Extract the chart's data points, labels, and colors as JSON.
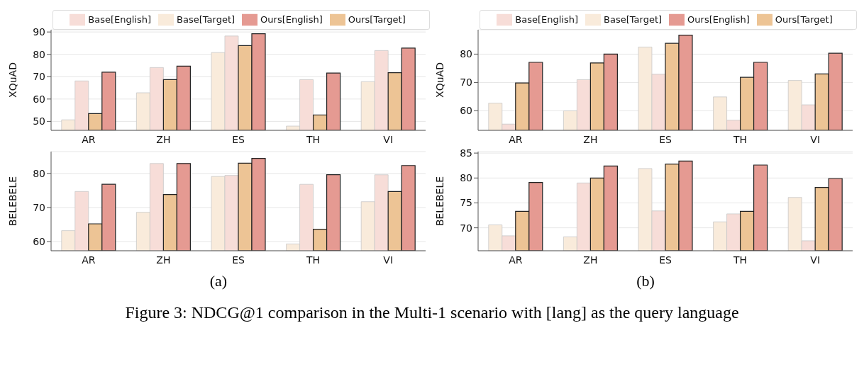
{
  "chart_data": [
    {
      "type": "bar",
      "ylabel": "XQuAD",
      "categories": [
        "AR",
        "ZH",
        "ES",
        "TH",
        "VI"
      ],
      "ylim": [
        46,
        91
      ],
      "yticks": [
        50,
        60,
        70,
        80,
        90
      ],
      "grid": "y",
      "legend": "top",
      "series": [
        {
          "name": "Base[Target]",
          "color": "#f9ebdb",
          "values": [
            50.7,
            62.8,
            80.8,
            47.9,
            67.8
          ]
        },
        {
          "name": "Base[English]",
          "color": "#f7ddd8",
          "values": [
            68.1,
            74.1,
            88.2,
            68.7,
            81.7
          ]
        },
        {
          "name": "Ours[Target]",
          "color": "#edc495",
          "values": [
            53.5,
            68.7,
            83.9,
            52.9,
            71.8
          ]
        },
        {
          "name": "Ours[English]",
          "color": "#e59a92",
          "values": [
            72.0,
            74.7,
            89.2,
            71.6,
            82.8
          ]
        }
      ]
    },
    {
      "type": "bar",
      "ylabel": "BELEBELE",
      "categories": [
        "AR",
        "ZH",
        "ES",
        "TH",
        "VI"
      ],
      "ylim": [
        57.3,
        86.4
      ],
      "yticks": [
        60,
        70,
        80
      ],
      "grid": "y",
      "annotations": [
        "(a)"
      ],
      "series": [
        {
          "color": "#f9ebdb",
          "values": [
            63.2,
            68.6,
            79.1,
            59.3,
            71.7
          ]
        },
        {
          "color": "#f7ddd8",
          "values": [
            74.7,
            82.9,
            79.4,
            76.8,
            79.6
          ]
        },
        {
          "color": "#edc495",
          "values": [
            65.2,
            73.8,
            83.0,
            63.6,
            74.7
          ]
        },
        {
          "color": "#e59a92",
          "values": [
            76.8,
            82.9,
            84.4,
            79.6,
            82.3
          ]
        }
      ]
    },
    {
      "type": "bar",
      "ylabel": "XQuAD",
      "categories": [
        "AR",
        "ZH",
        "ES",
        "TH",
        "VI"
      ],
      "ylim": [
        53.1,
        88.6
      ],
      "yticks": [
        60,
        70,
        80
      ],
      "grid": "y",
      "legend": "top",
      "series": [
        {
          "name": "Base[Target]",
          "color": "#f9ebdb",
          "values": [
            62.7,
            60.0,
            82.5,
            64.9,
            70.7
          ]
        },
        {
          "name": "Base[English]",
          "color": "#f7ddd8",
          "values": [
            55.3,
            71.0,
            72.9,
            56.7,
            62.1
          ]
        },
        {
          "name": "Ours[Target]",
          "color": "#edc495",
          "values": [
            69.8,
            76.9,
            83.8,
            71.8,
            73.0
          ]
        },
        {
          "name": "Ours[English]",
          "color": "#e59a92",
          "values": [
            77.1,
            80.0,
            86.7,
            77.1,
            80.3
          ]
        }
      ]
    },
    {
      "type": "bar",
      "ylabel": "BELEBELE",
      "categories": [
        "AR",
        "ZH",
        "ES",
        "TH",
        "VI"
      ],
      "ylim": [
        65.4,
        85.3
      ],
      "yticks": [
        70,
        75,
        80,
        85
      ],
      "grid": "y",
      "annotations": [
        "(b)",
        "Figure 3: NDCG@1 comparison in the Multi-1 scenario with [lang] as the query language"
      ],
      "series": [
        {
          "color": "#f9ebdb",
          "values": [
            70.6,
            68.2,
            81.9,
            71.2,
            76.1
          ]
        },
        {
          "color": "#f7ddd8",
          "values": [
            68.4,
            79.0,
            73.4,
            72.8,
            67.4
          ]
        },
        {
          "color": "#edc495",
          "values": [
            73.3,
            80.0,
            82.8,
            73.3,
            78.1
          ]
        },
        {
          "color": "#e59a92",
          "values": [
            79.1,
            82.4,
            83.4,
            82.6,
            79.9
          ]
        }
      ]
    }
  ]
}
